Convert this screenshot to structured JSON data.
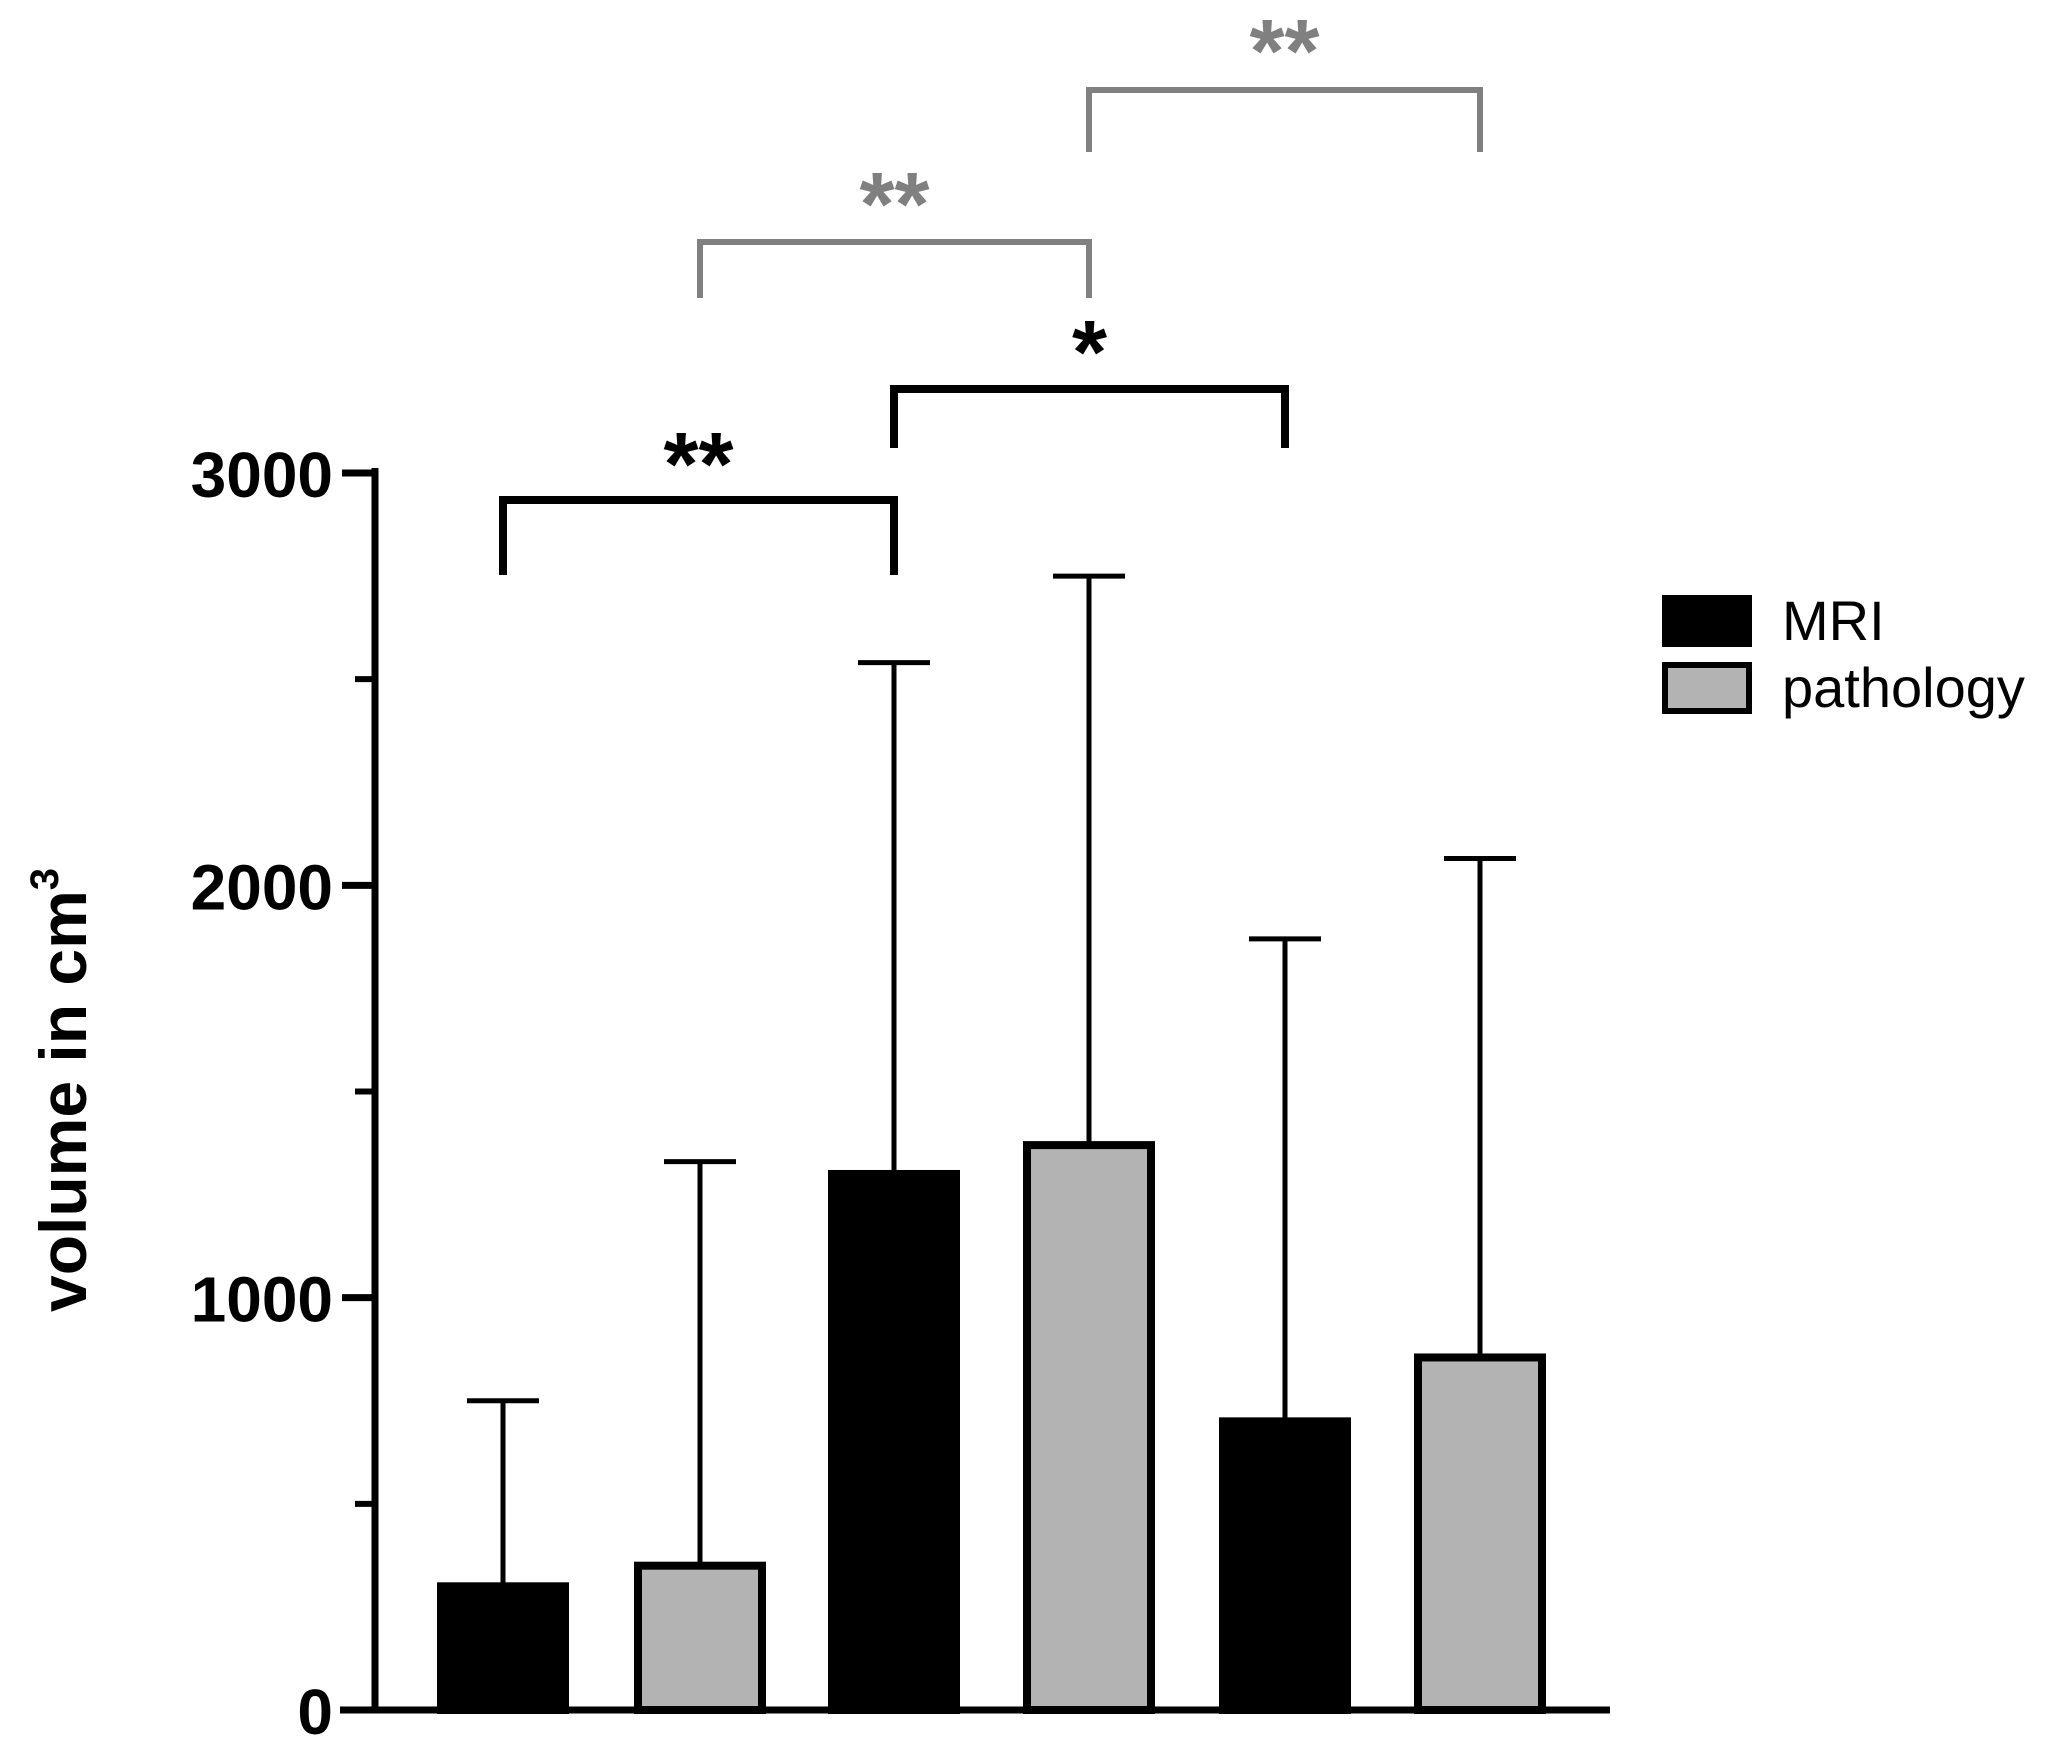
{
  "chart_data": {
    "type": "bar",
    "title": "",
    "xlabel": "",
    "ylabel": "volume in cm",
    "ylabel_superscript": "3",
    "ylim": [
      0,
      3000
    ],
    "yticks": [
      "0",
      "1000",
      "2000",
      "3000"
    ],
    "minor_yticks": [
      500,
      1500,
      2500
    ],
    "grid": false,
    "legend_position": "right",
    "colors": {
      "MRI": "#000000",
      "pathology": "#b3b3b3",
      "axis": "#000000",
      "sig_gray": "#808080"
    },
    "series": [
      {
        "name": "MRI",
        "values": [
          300,
          1300,
          700
        ],
        "error_upper": [
          750,
          2540,
          1870
        ]
      },
      {
        "name": "pathology",
        "values": [
          350,
          1370,
          855
        ],
        "error_upper": [
          1330,
          2750,
          2065
        ]
      }
    ],
    "bars_order": [
      {
        "series": "MRI",
        "value": 300,
        "err": 750
      },
      {
        "series": "pathology",
        "value": 350,
        "err": 1330
      },
      {
        "series": "MRI",
        "value": 1300,
        "err": 2540
      },
      {
        "series": "pathology",
        "value": 1370,
        "err": 2750
      },
      {
        "series": "MRI",
        "value": 700,
        "err": 1870
      },
      {
        "series": "pathology",
        "value": 855,
        "err": 2065
      }
    ],
    "significance": [
      {
        "from": 0,
        "to": 2,
        "label": "**",
        "color": "black",
        "level": 0
      },
      {
        "from": 2,
        "to": 4,
        "label": "*",
        "color": "black",
        "level": 1
      },
      {
        "from": 1,
        "to": 3,
        "label": "**",
        "color": "gray",
        "level": 2
      },
      {
        "from": 3,
        "to": 5,
        "label": "**",
        "color": "gray",
        "level": 3
      }
    ]
  }
}
